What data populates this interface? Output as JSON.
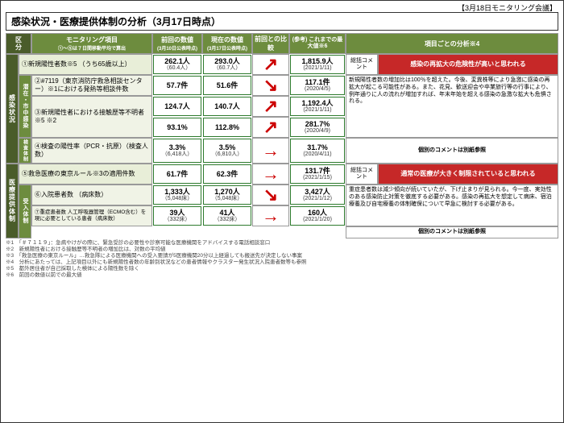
{
  "header_note": "【3月18日モニタリング会議】",
  "title": "感染状況・医療提供体制の分析（3月17日時点）",
  "cols": {
    "kubun": "区分",
    "item": "モニタリング項目",
    "item_sub": "①～⑤は７日間移動平均で算出",
    "prev": "前回の数値",
    "prev_sub": "(3月10日公表時点)",
    "curr": "現在の数値",
    "curr_sub": "(3月17日公表時点)",
    "comp": "前回との比較",
    "ref": "(参考) これまでの最大値※6",
    "analysis": "項目ごとの分析※4"
  },
  "catA": "感染状況",
  "catB": "医療提供体制",
  "subA1": "潜在・市中感染",
  "subA2": "検査体制",
  "subB1": "受入体制",
  "summaryLbl": "総括コメント",
  "noteRef": "個別のコメントは別紙参照",
  "red1": "感染の再拡大の危険性が高いと思われる",
  "red2": "通常の医療が大きく制限されていると思われる",
  "items": {
    "r1": "①新規陽性者数※5 （うち65歳以上）",
    "r2": "②#7119（東京消防庁救急相談センター）※1における発熱等相談件数",
    "r3a": "③新規陽性者における接触歴等不明者※5 ※2",
    "r3a_sub1": "数",
    "r3a_sub2": "増加比",
    "r4": "④検査の陽性率（PCR・抗原）（検査人数）",
    "r5": "⑤救急医療の東京ルール※3の適用件数",
    "r6": "⑥入院患者数 （病床数）",
    "r7": "⑦重症患者数 人工呼吸器管理（ECMO含む）を現に必要としている患者（病床数）"
  },
  "v": {
    "r1p": "262.1人",
    "r1ps": "（60.4人）",
    "r1c": "293.0人",
    "r1cs": "（60.7人）",
    "r1m": "1,815.9人",
    "r1md": "(2021/1/11)",
    "r2p": "57.7件",
    "r2c": "51.6件",
    "r2m": "117.1件",
    "r2md": "(2020/4/5)",
    "r3p": "124.7人",
    "r3c": "140.7人",
    "r3m": "1,192.4人",
    "r3md": "(2021/1/11)",
    "r3bp": "93.1%",
    "r3bc": "112.8%",
    "r3bm": "281.7%",
    "r3bmd": "(2020/4/9)",
    "r4p": "3.3%",
    "r4ps": "（6,418人）",
    "r4c": "3.5%",
    "r4cs": "（6,810人）",
    "r4m": "31.7%",
    "r4md": "(2020/4/11)",
    "r5p": "61.7件",
    "r5c": "62.3件",
    "r5m": "131.7件",
    "r5md": "(2021/1/15)",
    "r6p": "1,333人",
    "r6ps": "（5,048床）",
    "r6c": "1,270人",
    "r6cs": "（5,048床）",
    "r6m": "3,427人",
    "r6md": "(2021/1/12)",
    "r7p": "39人",
    "r7ps": "（332床）",
    "r7c": "41人",
    "r7cs": "（332床）",
    "r7m": "160人",
    "r7md": "(2021/1/20)"
  },
  "analysis1": "新規陽性者数の増加比は100％を超えた。今後、変異株等により急激に感染の再拡大が起こる可能性がある。また、花見、歓送迎会や卒業旅行等の行事により、例年通りに人の流れが増加すれば、年末年始を超える感染の急激な拡大も危惧される。",
  "analysis2": "重症患者数は減少傾向が続いていたが、下げ止まりが見られる。今一度、実効性のある感染防止対策を徹底する必要がある。感染の再拡大を想定して病床、宿泊療養及び自宅療養の体制確保について早急に検討する必要がある。",
  "fn": [
    "※1　「＃７１１９」：急病やけがの際に、緊急受診の必要性や診察可能な医療機関をアドバイスする電話相談窓口",
    "※2　新規陽性者における接触歴等不明者の増加比は、対数の平均値",
    "※3　「救急医療の東京ルール」…救急隊による医療機関への受入要請が5医療機関20分以上経過しても搬送先が決定しない事案",
    "※4　分析にあたっては、上記項目以外にも新規陽性者数の年齢別状況などの患者情報やクラスター発生状況入院患者数等も参照",
    "※5　都外居住者が自己採取した検体による陽性数を除く",
    "※6　前回の数値以前での最大値"
  ]
}
